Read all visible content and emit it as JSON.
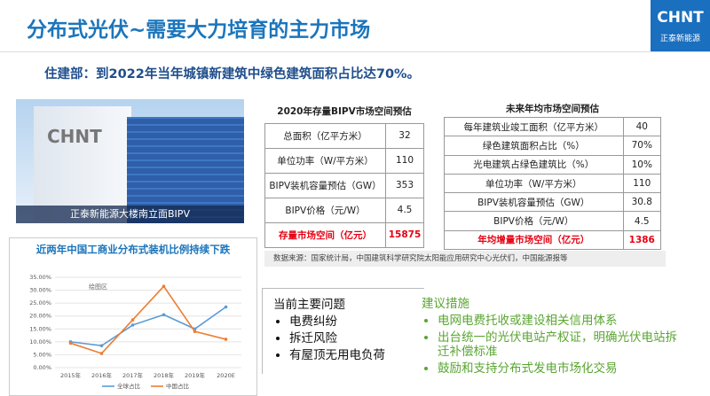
{
  "header": {
    "title": "分布式光伏~需要大力培育的主力市场",
    "logo": "CHNT",
    "logo_sub": "正泰新能源"
  },
  "subtitle": "住建部：到2022年当年城镇新建筑中绿色建筑面积占比达70%。",
  "photo": {
    "building_logo": "CHNT",
    "caption": "正泰新能源大楼南立面BIPV"
  },
  "table1": {
    "title": "2020年存量BIPV市场空间预估",
    "rows": [
      [
        "总面积（亿平方米）",
        "32"
      ],
      [
        "单位功率（W/平方米）",
        "110"
      ],
      [
        "BIPV装机容量预估（GW）",
        "353"
      ],
      [
        "BIPV价格（元/W）",
        "4.5"
      ],
      [
        "存量市场空间（亿元）",
        "15875"
      ]
    ]
  },
  "table2": {
    "title": "未来年均市场空间预估",
    "rows": [
      [
        "每年建筑业竣工面积（亿平方米）",
        "40"
      ],
      [
        "绿色建筑面积占比（%）",
        "70%"
      ],
      [
        "光电建筑占绿色建筑比（%）",
        "10%"
      ],
      [
        "单位功率（W/平方米）",
        "110"
      ],
      [
        "BIPV装机容量预估（GW）",
        "30.8"
      ],
      [
        "BIPV价格（元/W）",
        "4.5"
      ],
      [
        "年均增量市场空间（亿元）",
        "1386"
      ]
    ]
  },
  "source": "数据来源：国家统计局，中国建筑科学研究院太阳能应用研究中心光伏们，中国能源报等",
  "chart_data": {
    "type": "line",
    "title": "近两年中国工商业分布式装机比例持续下跌",
    "plot_area_label": "绘图区",
    "categories": [
      "2015年",
      "2016年",
      "2017年",
      "2018年",
      "2019年",
      "2020E"
    ],
    "series": [
      {
        "name": "全球占比",
        "color": "#5b9bd5",
        "values": [
          10,
          8.5,
          16.5,
          20.5,
          15,
          23.5
        ]
      },
      {
        "name": "中国占比",
        "color": "#ed7d31",
        "values": [
          9.5,
          5.5,
          18.5,
          31.5,
          14,
          11
        ]
      }
    ],
    "ylim": [
      0,
      35
    ],
    "yticks": [
      {
        "value": 0,
        "label": "0.00%"
      },
      {
        "value": 5,
        "label": "5.00%"
      },
      {
        "value": 10,
        "label": "10.00%"
      },
      {
        "value": 15,
        "label": "15.00%"
      },
      {
        "value": 20,
        "label": "20.00%"
      },
      {
        "value": 25,
        "label": "25.00%"
      },
      {
        "value": 30,
        "label": "30.00%"
      },
      {
        "value": 35,
        "label": "35.00%"
      }
    ],
    "grid": true
  },
  "problems": {
    "heading": "当前主要问题",
    "items": [
      "电费纠纷",
      "拆迁风险",
      "有屋顶无用电负荷"
    ]
  },
  "suggestions": {
    "heading": "建议措施",
    "items": [
      "电网电费托收或建设相关信用体系",
      "出台统一的光伏电站产权证，明确光伏电站拆迁补偿标准",
      "鼓励和支持分布式发电市场化交易"
    ]
  }
}
